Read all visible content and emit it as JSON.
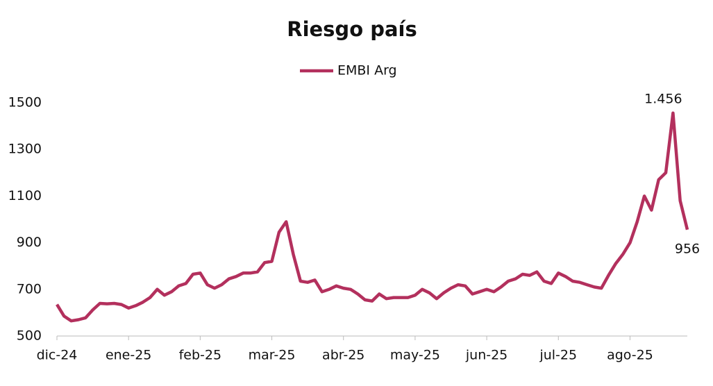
{
  "chart_data": {
    "type": "line",
    "title": "Riesgo país",
    "categories": [
      "dic-24",
      null,
      null,
      null,
      null,
      null,
      null,
      null,
      null,
      null,
      "ene-25",
      null,
      null,
      null,
      null,
      null,
      null,
      null,
      null,
      null,
      "feb-25",
      null,
      null,
      null,
      null,
      null,
      null,
      null,
      null,
      null,
      "mar-25",
      null,
      null,
      null,
      null,
      null,
      null,
      null,
      null,
      null,
      "abr-25",
      null,
      null,
      null,
      null,
      null,
      null,
      null,
      null,
      null,
      "may-25",
      null,
      null,
      null,
      null,
      null,
      null,
      null,
      null,
      null,
      "jun-25",
      null,
      null,
      null,
      null,
      null,
      null,
      null,
      null,
      null,
      "jul-25",
      null,
      null,
      null,
      null,
      null,
      null,
      null,
      null,
      null,
      "ago-25",
      null,
      null,
      null,
      null,
      null,
      null,
      null,
      null
    ],
    "series": [
      {
        "name": "EMBI Arg",
        "color": "#b3305d",
        "values": [
          635,
          585,
          565,
          570,
          578,
          612,
          640,
          638,
          640,
          635,
          620,
          630,
          645,
          665,
          700,
          675,
          690,
          715,
          725,
          765,
          770,
          720,
          705,
          720,
          745,
          755,
          770,
          770,
          775,
          815,
          820,
          945,
          990,
          850,
          735,
          730,
          740,
          690,
          700,
          715,
          705,
          700,
          680,
          655,
          650,
          680,
          660,
          665,
          665,
          665,
          675,
          700,
          685,
          660,
          685,
          705,
          720,
          715,
          680,
          690,
          700,
          690,
          710,
          735,
          745,
          765,
          760,
          775,
          735,
          725,
          770,
          755,
          735,
          730,
          720,
          710,
          705,
          760,
          810,
          850,
          900,
          990,
          1100,
          1040,
          1170,
          1200,
          1456,
          1080,
          956
        ],
        "value_labels": [
          null,
          null,
          null,
          null,
          null,
          null,
          null,
          null,
          null,
          null,
          null,
          null,
          null,
          null,
          null,
          null,
          null,
          null,
          null,
          null,
          null,
          null,
          null,
          null,
          null,
          null,
          null,
          null,
          null,
          null,
          null,
          null,
          null,
          null,
          null,
          null,
          null,
          null,
          null,
          null,
          null,
          null,
          null,
          null,
          null,
          null,
          null,
          null,
          null,
          null,
          null,
          null,
          null,
          null,
          null,
          null,
          null,
          null,
          null,
          null,
          null,
          null,
          null,
          null,
          null,
          null,
          null,
          null,
          null,
          null,
          null,
          null,
          null,
          null,
          null,
          null,
          null,
          null,
          null,
          null,
          null,
          null,
          null,
          null,
          null,
          null,
          "1.456",
          null,
          "956"
        ]
      }
    ],
    "ylim": [
      500,
      1500
    ],
    "yticks": [
      500,
      700,
      900,
      1100,
      1300,
      1500
    ],
    "grid": false,
    "legend": "top"
  }
}
